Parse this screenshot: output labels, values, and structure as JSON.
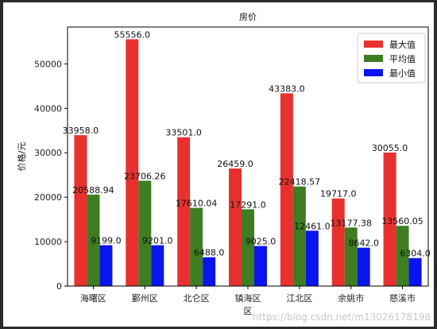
{
  "chart_data": {
    "type": "bar",
    "title": "房价",
    "xlabel": "区",
    "ylabel": "价格/元",
    "categories": [
      "海曙区",
      "鄞州区",
      "北仑区",
      "镇海区",
      "江北区",
      "余姚市",
      "慈溪市"
    ],
    "series": [
      {
        "name": "最大值",
        "color": "#e8312f",
        "values": [
          33958.0,
          55556.0,
          33501.0,
          26459.0,
          43383.0,
          19717.0,
          30055.0
        ],
        "labels": [
          "33958.0",
          "55556.0",
          "33501.0",
          "26459.0",
          "43383.0",
          "19717.0",
          "30055.0"
        ]
      },
      {
        "name": "平均值",
        "color": "#3e7d22",
        "values": [
          20588.94,
          23706.26,
          17610.04,
          17291.0,
          22418.57,
          13177.38,
          13560.05
        ],
        "labels": [
          "20588.94",
          "23706.26",
          "17610.04",
          "17291.0",
          "22418.57",
          "13177.38",
          "13560.05"
        ]
      },
      {
        "name": "最小值",
        "color": "#0a14f0",
        "values": [
          9199.0,
          9201.0,
          6488.0,
          9025.0,
          12461.0,
          8642.0,
          6304.0
        ],
        "labels": [
          "9199.0",
          "9201.0",
          "6488.0",
          "9025.0",
          "12461.0",
          "8642.0",
          "6304.0"
        ]
      }
    ],
    "yticks": [
      0,
      10000,
      20000,
      30000,
      40000,
      50000
    ],
    "ylim": [
      0,
      58300
    ],
    "grid": false,
    "legend": "top-right"
  },
  "watermark": "https://blog.csdn.net/m13026178198"
}
